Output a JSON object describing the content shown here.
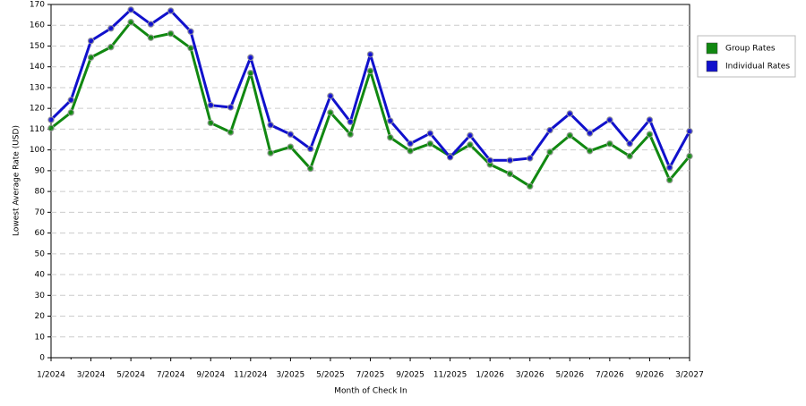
{
  "chart_data": {
    "type": "line",
    "x_label": "Month of Check In",
    "y_label": "Lowest Average Rate (USD)",
    "categories": [
      "1/2024",
      null,
      "3/2024",
      null,
      "5/2024",
      null,
      "7/2024",
      null,
      "9/2024",
      null,
      "11/2024",
      null,
      "3/2025",
      null,
      "5/2025",
      null,
      "7/2025",
      null,
      "9/2025",
      null,
      "11/2025",
      null,
      "1/2026",
      null,
      "3/2026",
      null,
      "5/2026",
      null,
      "7/2026",
      null,
      "9/2026",
      null,
      "3/2027"
    ],
    "series": [
      {
        "name": "Group Rates",
        "color": "#118811",
        "values": [
          110.5,
          118,
          144.5,
          149.5,
          161.5,
          154,
          156,
          149,
          113,
          108.5,
          137,
          98.5,
          101.5,
          91,
          118,
          107.5,
          138,
          106,
          99.5,
          103,
          97,
          102.5,
          93,
          88.5,
          82.5,
          99,
          107,
          99.5,
          103,
          97,
          107.5,
          85.5,
          97
        ]
      },
      {
        "name": "Individual Rates",
        "color": "#1111cc",
        "values": [
          114.5,
          124,
          152.5,
          158.5,
          167.5,
          160.5,
          167,
          157,
          121.5,
          120.5,
          144.5,
          112,
          107.5,
          100.5,
          126,
          113.5,
          146,
          114,
          103,
          108,
          96.5,
          107,
          95,
          95,
          96,
          109.5,
          117.5,
          108,
          114.5,
          103,
          114.5,
          91.5,
          109
        ]
      }
    ],
    "ylim": [
      0,
      170
    ],
    "yticks": [
      0,
      10,
      20,
      30,
      40,
      50,
      60,
      70,
      80,
      90,
      100,
      110,
      120,
      130,
      140,
      150,
      160,
      170
    ],
    "grid": true,
    "legend": "right"
  }
}
